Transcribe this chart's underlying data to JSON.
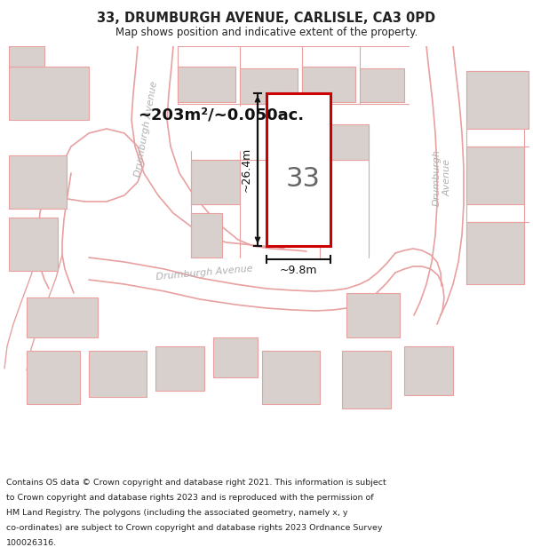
{
  "title_line1": "33, DRUMBURGH AVENUE, CARLISLE, CA3 0PD",
  "title_line2": "Map shows position and indicative extent of the property.",
  "area_text": "~203m²/~0.050ac.",
  "number_label": "33",
  "dim_width": "~9.8m",
  "dim_height": "~26.4m",
  "footer_lines": [
    "Contains OS data © Crown copyright and database right 2021. This information is subject",
    "to Crown copyright and database rights 2023 and is reproduced with the permission of",
    "HM Land Registry. The polygons (including the associated geometry, namely x, y",
    "co-ordinates) are subject to Crown copyright and database rights 2023 Ordnance Survey",
    "100026316."
  ],
  "map_bg": "#f7f5f2",
  "road_line": "#e8a0a0",
  "plot_fill": "#ffffff",
  "plot_edge": "#cc0000",
  "building_fill": "#d8d0cc",
  "building_edge": "#e8a0a0",
  "parcel_line": "#e8a0a0",
  "road_label": "#b0b0b0",
  "white": "#ffffff",
  "text_dark": "#222222",
  "dim_color": "#111111"
}
